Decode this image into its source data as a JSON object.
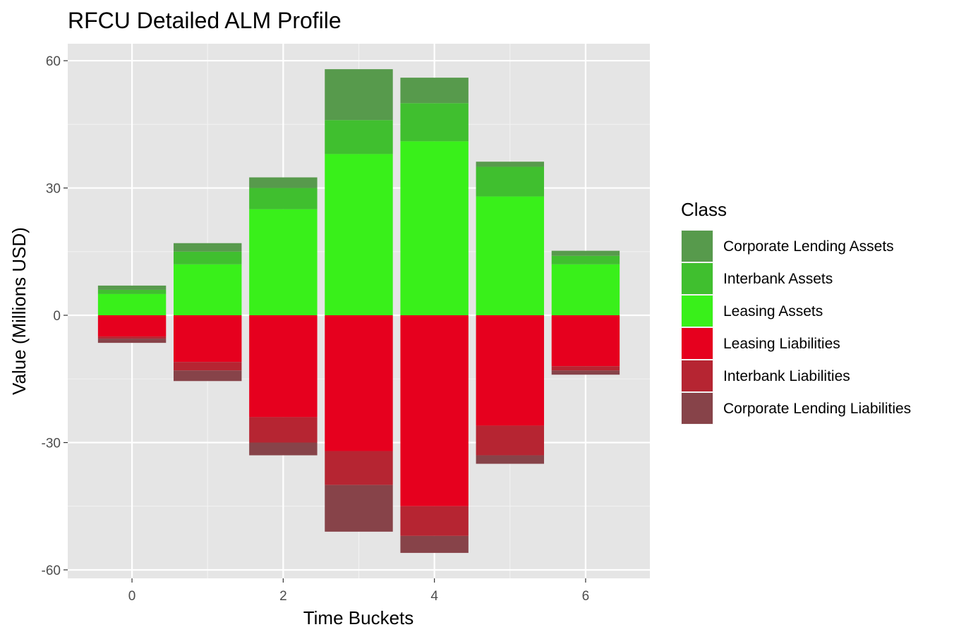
{
  "chart_data": {
    "type": "bar",
    "stacked": true,
    "diverging": true,
    "title": "RFCU Detailed ALM Profile",
    "xlabel": "Time Buckets",
    "ylabel": "Value (Millions USD)",
    "x": [
      0,
      1,
      2,
      3,
      4,
      5,
      6
    ],
    "xlim": [
      -0.85,
      6.85
    ],
    "ylim": [
      -62,
      64
    ],
    "x_ticks": [
      0,
      2,
      4,
      6
    ],
    "x_tick_labels": [
      "0",
      "2",
      "4",
      "6"
    ],
    "y_ticks": [
      -60,
      -30,
      0,
      30,
      60
    ],
    "y_tick_labels": [
      "-60",
      "-30",
      "0",
      "30",
      "60"
    ],
    "grid": true,
    "legend": {
      "title": "Class",
      "position": "right",
      "entries": [
        "Corporate Lending Assets",
        "Interbank Assets",
        "Leasing Assets",
        "Leasing Liabilities",
        "Interbank Liabilities",
        "Corporate Lending Liabilities"
      ]
    },
    "series": [
      {
        "name": "Leasing Assets",
        "color": "#39f01a",
        "values": [
          5,
          12,
          25,
          38,
          41,
          28,
          12
        ]
      },
      {
        "name": "Interbank Assets",
        "color": "#40bf2f",
        "values": [
          1,
          3,
          5,
          8,
          9,
          7,
          2
        ]
      },
      {
        "name": "Corporate Lending Assets",
        "color": "#579a4c",
        "values": [
          1,
          2,
          2.5,
          12,
          6,
          1.2,
          1.2
        ]
      },
      {
        "name": "Leasing Liabilities",
        "color": "#e6001e",
        "values": [
          -5,
          -11,
          -24,
          -32,
          -45,
          -26,
          -12
        ]
      },
      {
        "name": "Interbank Liabilities",
        "color": "#b62532",
        "values": [
          -0.5,
          -2,
          -6,
          -8,
          -7,
          -7,
          -1
        ]
      },
      {
        "name": "Corporate Lending Liabilities",
        "color": "#874349",
        "values": [
          -1,
          -2.5,
          -3,
          -11,
          -4,
          -2,
          -1
        ]
      }
    ]
  }
}
